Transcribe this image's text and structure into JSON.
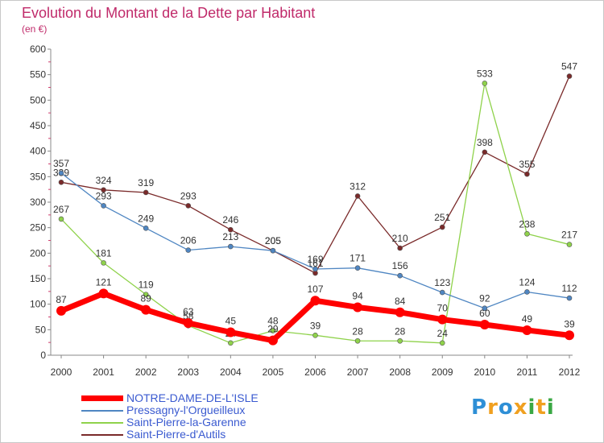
{
  "title": "Evolution du Montant de la Dette par Habitant",
  "subtitle": "(en €)",
  "chart_data": {
    "type": "line",
    "x": [
      "2000",
      "2001",
      "2002",
      "2003",
      "2004",
      "2005",
      "2006",
      "2007",
      "2008",
      "2009",
      "2010",
      "2011",
      "2012"
    ],
    "ylim": [
      0,
      600
    ],
    "yticks": [
      0,
      50,
      100,
      150,
      200,
      250,
      300,
      350,
      400,
      450,
      500,
      550,
      600
    ],
    "grid": false,
    "legend_position": "bottom-left",
    "series": [
      {
        "name": "NOTRE-DAME-DE-L'ISLE",
        "color": "#ff0000",
        "values": [
          87,
          121,
          89,
          63,
          45,
          29,
          107,
          94,
          84,
          70,
          60,
          49,
          39
        ]
      },
      {
        "name": "Pressagny-l'Orgueilleux",
        "color": "#4f86c2",
        "values": [
          357,
          293,
          249,
          206,
          213,
          205,
          169,
          171,
          156,
          123,
          92,
          124,
          112
        ]
      },
      {
        "name": "Saint-Pierre-la-Garenne",
        "color": "#8fd24b",
        "values": [
          267,
          181,
          119,
          58,
          24,
          48,
          39,
          28,
          28,
          24,
          533,
          238,
          217
        ]
      },
      {
        "name": "Saint-Pierre-d'Autils",
        "color": "#7a2a2a",
        "values": [
          339,
          324,
          319,
          293,
          246,
          205,
          161,
          312,
          210,
          251,
          398,
          355,
          547
        ]
      }
    ]
  },
  "logo": {
    "letters": [
      "P",
      "r",
      "o",
      "x",
      "i",
      "t",
      "i"
    ],
    "colors": [
      "#2e8fd6",
      "#f0a020",
      "#2e8fd6",
      "#f0a020",
      "#3aa844",
      "#f0a020",
      "#3aa844"
    ]
  }
}
